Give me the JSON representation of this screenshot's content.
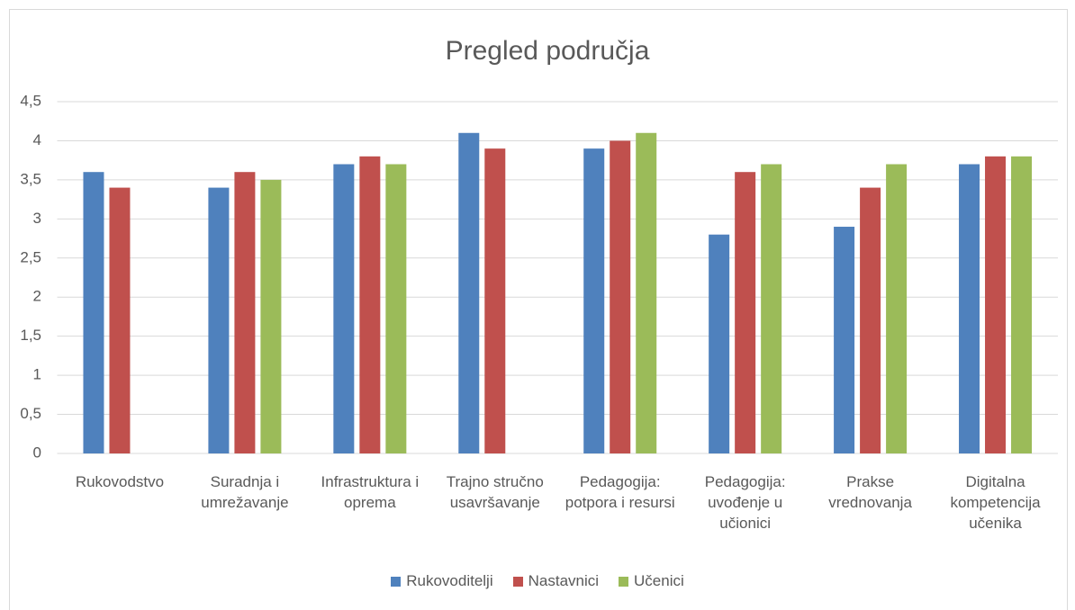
{
  "chart_data": {
    "type": "bar",
    "title": "Pregled područja",
    "categories": [
      "Rukovodstvo",
      "Suradnja i umrežavanje",
      "Infrastruktura i oprema",
      "Trajno stručno usavršavanje",
      "Pedagogija: potpora i resursi",
      "Pedagogija: uvođenje u učionici",
      "Prakse vrednovanja",
      "Digitalna kompetencija učenika"
    ],
    "series": [
      {
        "name": "Rukovoditelji",
        "color": "#4f81bd",
        "values": [
          3.6,
          3.4,
          3.7,
          4.1,
          3.9,
          2.8,
          2.9,
          3.7
        ]
      },
      {
        "name": "Nastavnici",
        "color": "#c0504d",
        "values": [
          3.4,
          3.6,
          3.8,
          3.9,
          4.0,
          3.6,
          3.4,
          3.8
        ]
      },
      {
        "name": "Učenici",
        "color": "#9bbb59",
        "values": [
          null,
          3.5,
          3.7,
          null,
          4.1,
          3.7,
          3.7,
          3.8
        ]
      }
    ],
    "ylim": [
      0,
      4.5
    ],
    "yticks": [
      0,
      {
        "value": 0.5,
        "label": "0,5"
      },
      1,
      {
        "value": 1.5,
        "label": "1,5"
      },
      2,
      {
        "value": 2.5,
        "label": "2,5"
      },
      3,
      {
        "value": 3.5,
        "label": "3,5"
      },
      4,
      {
        "value": 4.5,
        "label": "4,5"
      }
    ],
    "grid": true,
    "legend": "bottom"
  }
}
